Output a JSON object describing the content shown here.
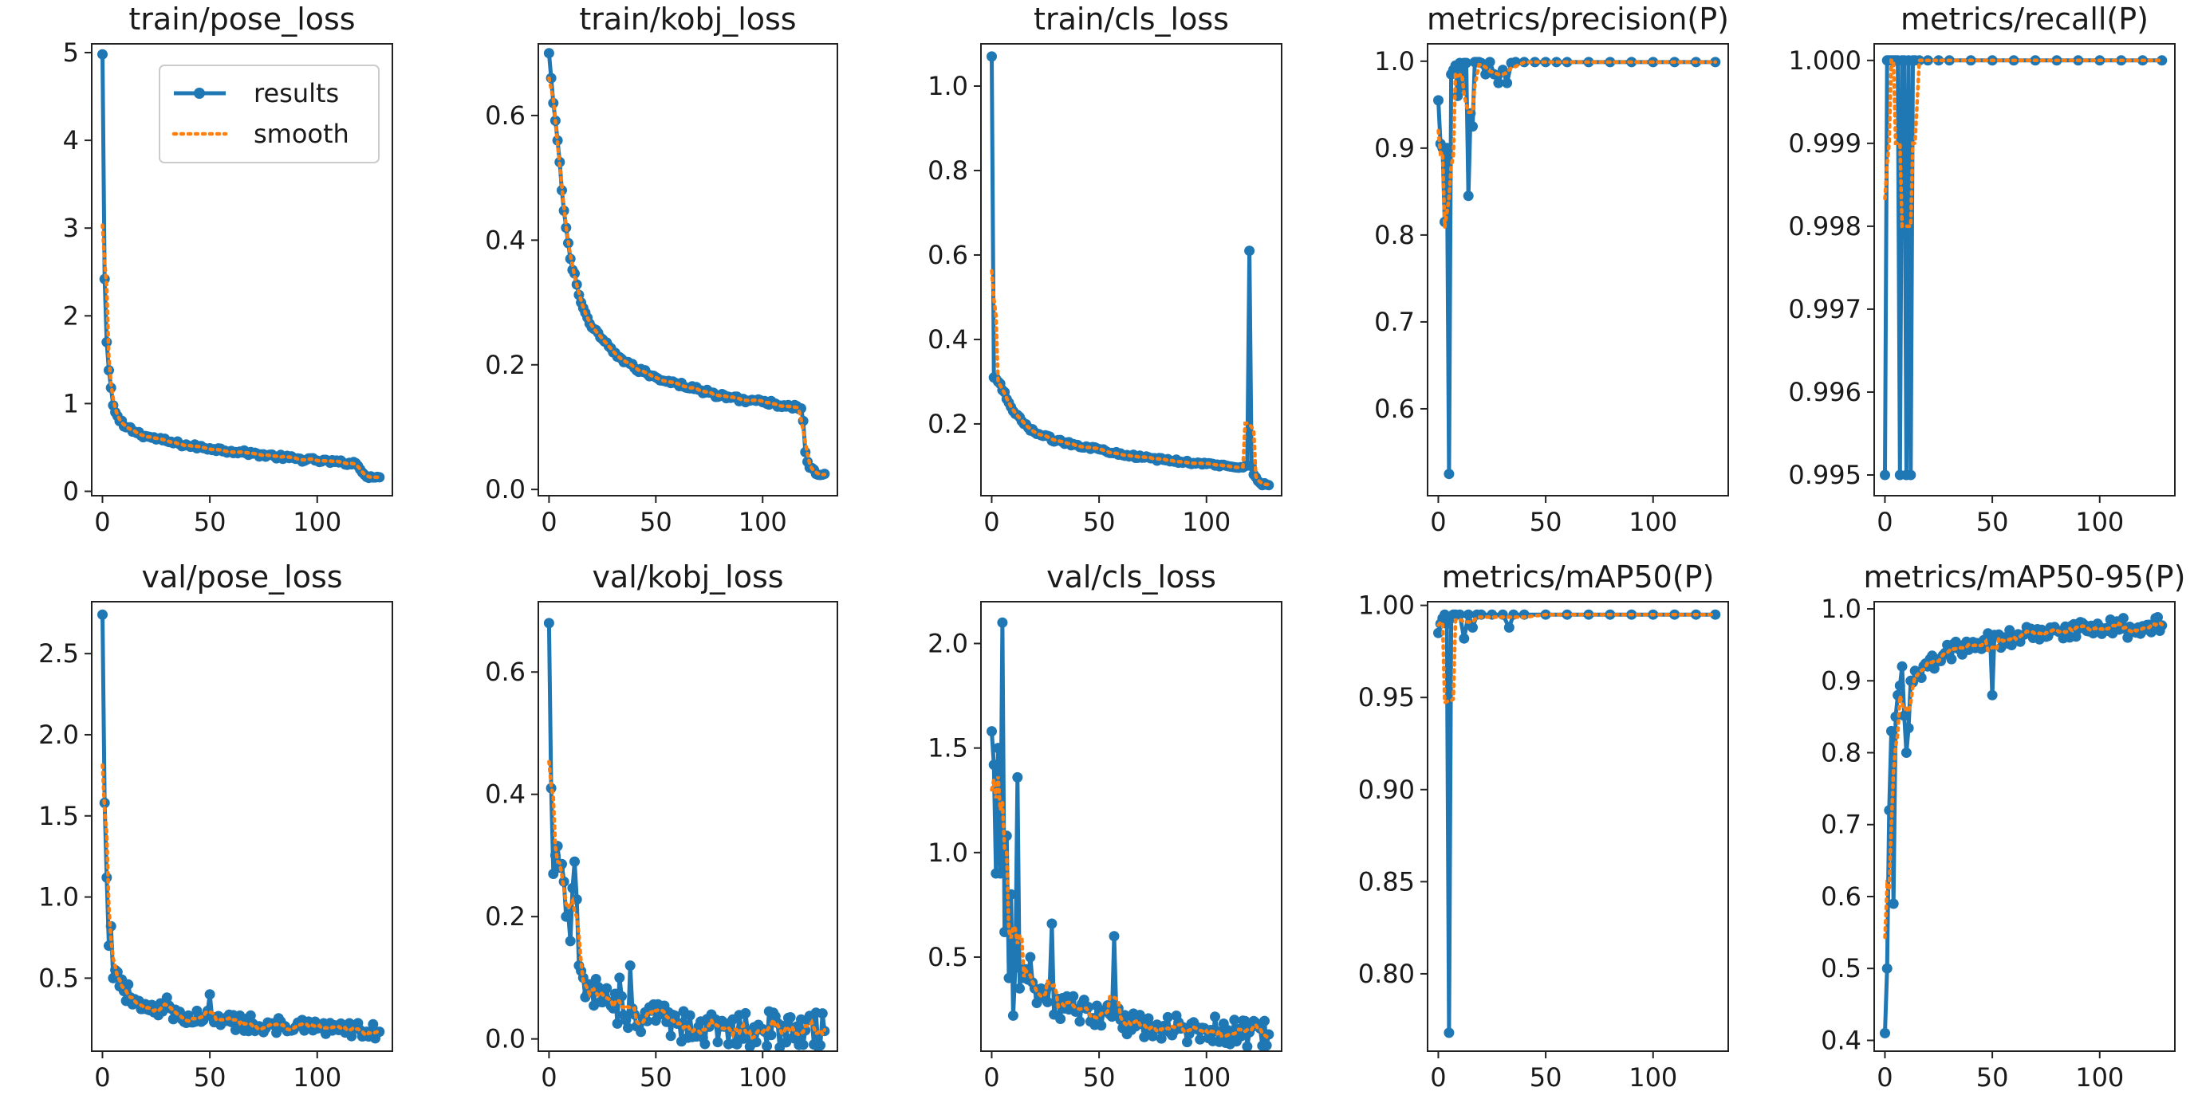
{
  "legend": {
    "results_label": "results",
    "smooth_label": "smooth"
  },
  "colors": {
    "results": "#1f77b4",
    "smooth": "#ff7f0e"
  },
  "chart_data": [
    {
      "type": "line",
      "title": "train/pose_loss",
      "xlim": [
        -5,
        135
      ],
      "ylim": [
        -0.05,
        5.1
      ],
      "xticks": [
        0,
        50,
        100
      ],
      "yticks": [
        0,
        1,
        2,
        3,
        4,
        5
      ],
      "ytick_labels": [
        "0",
        "1",
        "2",
        "3",
        "4",
        "5"
      ],
      "keypoints": [
        [
          0,
          4.98
        ],
        [
          1,
          2.42
        ],
        [
          2,
          1.7
        ],
        [
          3,
          1.38
        ],
        [
          4,
          1.18
        ],
        [
          5,
          0.98
        ],
        [
          6,
          0.9
        ],
        [
          8,
          0.8
        ],
        [
          10,
          0.74
        ],
        [
          15,
          0.68
        ],
        [
          20,
          0.63
        ],
        [
          30,
          0.57
        ],
        [
          40,
          0.52
        ],
        [
          50,
          0.49
        ],
        [
          60,
          0.46
        ],
        [
          70,
          0.43
        ],
        [
          80,
          0.4
        ],
        [
          90,
          0.37
        ],
        [
          100,
          0.35
        ],
        [
          110,
          0.33
        ],
        [
          118,
          0.32
        ],
        [
          120,
          0.25
        ],
        [
          122,
          0.19
        ],
        [
          125,
          0.17
        ],
        [
          129,
          0.16
        ]
      ],
      "noise": 0.025,
      "spikes": []
    },
    {
      "type": "line",
      "title": "train/kobj_loss",
      "xlim": [
        -5,
        135
      ],
      "ylim": [
        -0.01,
        0.715
      ],
      "xticks": [
        0,
        50,
        100
      ],
      "yticks": [
        0,
        0.2,
        0.4,
        0.6
      ],
      "ytick_labels": [
        "0.0",
        "0.2",
        "0.4",
        "0.6"
      ],
      "keypoints": [
        [
          0,
          0.7
        ],
        [
          1,
          0.66
        ],
        [
          2,
          0.62
        ],
        [
          4,
          0.56
        ],
        [
          6,
          0.48
        ],
        [
          8,
          0.42
        ],
        [
          10,
          0.37
        ],
        [
          15,
          0.3
        ],
        [
          20,
          0.26
        ],
        [
          30,
          0.22
        ],
        [
          40,
          0.195
        ],
        [
          50,
          0.18
        ],
        [
          60,
          0.17
        ],
        [
          70,
          0.16
        ],
        [
          80,
          0.15
        ],
        [
          90,
          0.145
        ],
        [
          100,
          0.14
        ],
        [
          110,
          0.135
        ],
        [
          118,
          0.13
        ],
        [
          119,
          0.11
        ],
        [
          120,
          0.06
        ],
        [
          122,
          0.035
        ],
        [
          125,
          0.025
        ],
        [
          129,
          0.025
        ]
      ],
      "noise": 0.004,
      "spikes": []
    },
    {
      "type": "line",
      "title": "train/cls_loss",
      "xlim": [
        -5,
        135
      ],
      "ylim": [
        0.03,
        1.1
      ],
      "xticks": [
        0,
        50,
        100
      ],
      "yticks": [
        0.2,
        0.4,
        0.6,
        0.8,
        1.0
      ],
      "ytick_labels": [
        "0.2",
        "0.4",
        "0.6",
        "0.8",
        "1.0"
      ],
      "keypoints": [
        [
          0,
          1.07
        ],
        [
          1,
          0.31
        ],
        [
          3,
          0.3
        ],
        [
          5,
          0.28
        ],
        [
          8,
          0.25
        ],
        [
          10,
          0.23
        ],
        [
          15,
          0.2
        ],
        [
          20,
          0.18
        ],
        [
          30,
          0.16
        ],
        [
          40,
          0.15
        ],
        [
          50,
          0.14
        ],
        [
          60,
          0.13
        ],
        [
          70,
          0.12
        ],
        [
          80,
          0.115
        ],
        [
          90,
          0.11
        ],
        [
          100,
          0.105
        ],
        [
          110,
          0.1
        ],
        [
          118,
          0.1
        ],
        [
          121,
          0.1
        ],
        [
          122,
          0.08
        ],
        [
          125,
          0.06
        ],
        [
          129,
          0.055
        ]
      ],
      "noise": 0.004,
      "spikes": [
        [
          120,
          0.61
        ]
      ]
    },
    {
      "type": "line",
      "title": "metrics/precision(P)",
      "xlim": [
        -5,
        135
      ],
      "ylim": [
        0.5,
        1.02
      ],
      "xticks": [
        0,
        50,
        100
      ],
      "yticks": [
        0.6,
        0.7,
        0.8,
        0.9,
        1.0
      ],
      "ytick_labels": [
        "0.6",
        "0.7",
        "0.8",
        "0.9",
        "1.0"
      ],
      "points": [
        [
          0,
          0.955
        ],
        [
          1,
          0.905
        ],
        [
          2,
          0.9
        ],
        [
          3,
          0.815
        ],
        [
          4,
          0.9
        ],
        [
          5,
          0.525
        ],
        [
          6,
          0.985
        ],
        [
          7,
          0.99
        ],
        [
          8,
          0.995
        ],
        [
          9,
          0.96
        ],
        [
          10,
          0.998
        ],
        [
          11,
          0.97
        ],
        [
          12,
          0.998
        ],
        [
          13,
          0.998
        ],
        [
          14,
          0.845
        ],
        [
          15,
          0.94
        ],
        [
          16,
          0.925
        ],
        [
          17,
          0.999
        ],
        [
          18,
          0.999
        ],
        [
          19,
          0.999
        ],
        [
          20,
          0.998
        ],
        [
          22,
          0.985
        ],
        [
          24,
          0.999
        ],
        [
          26,
          0.985
        ],
        [
          28,
          0.975
        ],
        [
          30,
          0.99
        ],
        [
          32,
          0.975
        ],
        [
          34,
          0.998
        ],
        [
          36,
          0.999
        ],
        [
          40,
          0.999
        ],
        [
          45,
          0.999
        ],
        [
          50,
          0.999
        ],
        [
          55,
          0.999
        ],
        [
          60,
          0.999
        ],
        [
          70,
          0.999
        ],
        [
          80,
          0.999
        ],
        [
          90,
          0.999
        ],
        [
          100,
          0.999
        ],
        [
          110,
          0.999
        ],
        [
          120,
          0.999
        ],
        [
          129,
          0.999
        ]
      ]
    },
    {
      "type": "line",
      "title": "metrics/recall(P)",
      "xlim": [
        -5,
        135
      ],
      "ylim": [
        0.99475,
        1.0002
      ],
      "xticks": [
        0,
        50,
        100
      ],
      "yticks": [
        0.995,
        0.996,
        0.997,
        0.998,
        0.999,
        1.0
      ],
      "ytick_labels": [
        "0.995",
        "0.996",
        "0.997",
        "0.998",
        "0.999",
        "1.000"
      ],
      "points": [
        [
          0,
          0.995
        ],
        [
          1,
          1.0
        ],
        [
          2,
          1.0
        ],
        [
          3,
          1.0
        ],
        [
          4,
          1.0
        ],
        [
          5,
          1.0
        ],
        [
          6,
          1.0
        ],
        [
          7,
          0.995
        ],
        [
          8,
          1.0
        ],
        [
          9,
          1.0
        ],
        [
          10,
          0.995
        ],
        [
          11,
          1.0
        ],
        [
          12,
          0.995
        ],
        [
          13,
          1.0
        ],
        [
          14,
          1.0
        ],
        [
          16,
          1.0
        ],
        [
          20,
          1.0
        ],
        [
          25,
          1.0
        ],
        [
          30,
          1.0
        ],
        [
          40,
          1.0
        ],
        [
          50,
          1.0
        ],
        [
          60,
          1.0
        ],
        [
          70,
          1.0
        ],
        [
          80,
          1.0
        ],
        [
          90,
          1.0
        ],
        [
          100,
          1.0
        ],
        [
          110,
          1.0
        ],
        [
          120,
          1.0
        ],
        [
          129,
          1.0
        ]
      ]
    },
    {
      "type": "line",
      "title": "val/pose_loss",
      "xlim": [
        -5,
        135
      ],
      "ylim": [
        0.05,
        2.82
      ],
      "xticks": [
        0,
        50,
        100
      ],
      "yticks": [
        0.5,
        1.0,
        1.5,
        2.0,
        2.5
      ],
      "ytick_labels": [
        "0.5",
        "1.0",
        "1.5",
        "2.0",
        "2.5"
      ],
      "keypoints": [
        [
          0,
          2.74
        ],
        [
          1,
          1.58
        ],
        [
          2,
          1.12
        ],
        [
          3,
          0.7
        ],
        [
          4,
          0.82
        ],
        [
          5,
          0.5
        ],
        [
          6,
          0.55
        ],
        [
          8,
          0.45
        ],
        [
          10,
          0.42
        ],
        [
          15,
          0.37
        ],
        [
          20,
          0.34
        ],
        [
          30,
          0.3
        ],
        [
          40,
          0.27
        ],
        [
          50,
          0.25
        ],
        [
          60,
          0.23
        ],
        [
          70,
          0.22
        ],
        [
          80,
          0.21
        ],
        [
          90,
          0.2
        ],
        [
          100,
          0.19
        ],
        [
          110,
          0.18
        ],
        [
          120,
          0.18
        ],
        [
          129,
          0.17
        ]
      ],
      "noise": 0.05,
      "spikes": [
        [
          50,
          0.4
        ],
        [
          30,
          0.38
        ]
      ]
    },
    {
      "type": "line",
      "title": "val/kobj_loss",
      "xlim": [
        -5,
        135
      ],
      "ylim": [
        -0.02,
        0.715
      ],
      "xticks": [
        0,
        50,
        100
      ],
      "yticks": [
        0,
        0.2,
        0.4,
        0.6
      ],
      "ytick_labels": [
        "0.0",
        "0.2",
        "0.4",
        "0.6"
      ],
      "keypoints": [
        [
          0,
          0.68
        ],
        [
          1,
          0.41
        ],
        [
          2,
          0.27
        ],
        [
          3,
          0.3
        ],
        [
          5,
          0.28
        ],
        [
          8,
          0.2
        ],
        [
          10,
          0.16
        ],
        [
          12,
          0.29
        ],
        [
          14,
          0.12
        ],
        [
          16,
          0.1
        ],
        [
          20,
          0.08
        ],
        [
          25,
          0.06
        ],
        [
          30,
          0.05
        ],
        [
          40,
          0.04
        ],
        [
          50,
          0.03
        ],
        [
          60,
          0.025
        ],
        [
          70,
          0.02
        ],
        [
          80,
          0.02
        ],
        [
          90,
          0.018
        ],
        [
          100,
          0.016
        ],
        [
          110,
          0.015
        ],
        [
          120,
          0.014
        ],
        [
          129,
          0.013
        ]
      ],
      "noise": 0.03,
      "spikes": [
        [
          38,
          0.12
        ],
        [
          33,
          0.1
        ]
      ]
    },
    {
      "type": "line",
      "title": "val/cls_loss",
      "xlim": [
        -5,
        135
      ],
      "ylim": [
        0.05,
        2.2
      ],
      "xticks": [
        0,
        50,
        100
      ],
      "yticks": [
        0.5,
        1.0,
        1.5,
        2.0
      ],
      "ytick_labels": [
        "0.5",
        "1.0",
        "1.5",
        "2.0"
      ],
      "keypoints": [
        [
          0,
          1.58
        ],
        [
          1,
          1.42
        ],
        [
          2,
          0.9
        ],
        [
          3,
          1.5
        ],
        [
          4,
          0.9
        ],
        [
          5,
          2.1
        ],
        [
          6,
          0.62
        ],
        [
          7,
          1.08
        ],
        [
          8,
          0.4
        ],
        [
          9,
          0.8
        ],
        [
          10,
          0.22
        ],
        [
          11,
          0.45
        ],
        [
          12,
          1.36
        ],
        [
          13,
          0.35
        ],
        [
          15,
          0.4
        ],
        [
          20,
          0.35
        ],
        [
          25,
          0.3
        ],
        [
          30,
          0.28
        ],
        [
          40,
          0.25
        ],
        [
          50,
          0.22
        ],
        [
          60,
          0.2
        ],
        [
          70,
          0.18
        ],
        [
          80,
          0.17
        ],
        [
          90,
          0.16
        ],
        [
          100,
          0.15
        ],
        [
          110,
          0.15
        ],
        [
          120,
          0.14
        ],
        [
          129,
          0.13
        ]
      ],
      "noise": 0.07,
      "spikes": [
        [
          28,
          0.66
        ],
        [
          57,
          0.6
        ],
        [
          18,
          0.5
        ]
      ]
    },
    {
      "type": "line",
      "title": "metrics/mAP50(P)",
      "xlim": [
        -5,
        135
      ],
      "ylim": [
        0.758,
        1.002
      ],
      "xticks": [
        0,
        50,
        100
      ],
      "yticks": [
        0.8,
        0.85,
        0.9,
        0.95,
        1.0
      ],
      "ytick_labels": [
        "0.80",
        "0.85",
        "0.90",
        "0.95",
        "1.00"
      ],
      "points": [
        [
          0,
          0.985
        ],
        [
          1,
          0.99
        ],
        [
          2,
          0.993
        ],
        [
          3,
          0.995
        ],
        [
          4,
          0.99
        ],
        [
          5,
          0.768
        ],
        [
          6,
          0.993
        ],
        [
          7,
          0.995
        ],
        [
          8,
          0.995
        ],
        [
          10,
          0.995
        ],
        [
          12,
          0.982
        ],
        [
          14,
          0.995
        ],
        [
          16,
          0.988
        ],
        [
          18,
          0.995
        ],
        [
          20,
          0.995
        ],
        [
          25,
          0.995
        ],
        [
          30,
          0.995
        ],
        [
          33,
          0.988
        ],
        [
          35,
          0.995
        ],
        [
          40,
          0.995
        ],
        [
          50,
          0.995
        ],
        [
          60,
          0.995
        ],
        [
          70,
          0.995
        ],
        [
          80,
          0.995
        ],
        [
          90,
          0.995
        ],
        [
          100,
          0.995
        ],
        [
          110,
          0.995
        ],
        [
          120,
          0.995
        ],
        [
          129,
          0.995
        ]
      ]
    },
    {
      "type": "line",
      "title": "metrics/mAP50-95(P)",
      "xlim": [
        -5,
        135
      ],
      "ylim": [
        0.385,
        1.01
      ],
      "xticks": [
        0,
        50,
        100
      ],
      "yticks": [
        0.4,
        0.5,
        0.6,
        0.7,
        0.8,
        0.9,
        1.0
      ],
      "ytick_labels": [
        "0.4",
        "0.5",
        "0.6",
        "0.7",
        "0.8",
        "0.9",
        "1.0"
      ],
      "keypoints": [
        [
          0,
          0.41
        ],
        [
          1,
          0.5
        ],
        [
          2,
          0.72
        ],
        [
          3,
          0.83
        ],
        [
          4,
          0.59
        ],
        [
          5,
          0.85
        ],
        [
          6,
          0.88
        ],
        [
          8,
          0.88
        ],
        [
          10,
          0.8
        ],
        [
          12,
          0.9
        ],
        [
          15,
          0.91
        ],
        [
          20,
          0.92
        ],
        [
          25,
          0.93
        ],
        [
          30,
          0.94
        ],
        [
          40,
          0.95
        ],
        [
          50,
          0.955
        ],
        [
          60,
          0.96
        ],
        [
          70,
          0.965
        ],
        [
          80,
          0.97
        ],
        [
          90,
          0.972
        ],
        [
          100,
          0.975
        ],
        [
          110,
          0.976
        ],
        [
          120,
          0.976
        ],
        [
          129,
          0.977
        ]
      ],
      "noise": 0.012,
      "spikes": [
        [
          50,
          0.88
        ],
        [
          8,
          0.92
        ],
        [
          113,
          0.96
        ]
      ]
    }
  ]
}
